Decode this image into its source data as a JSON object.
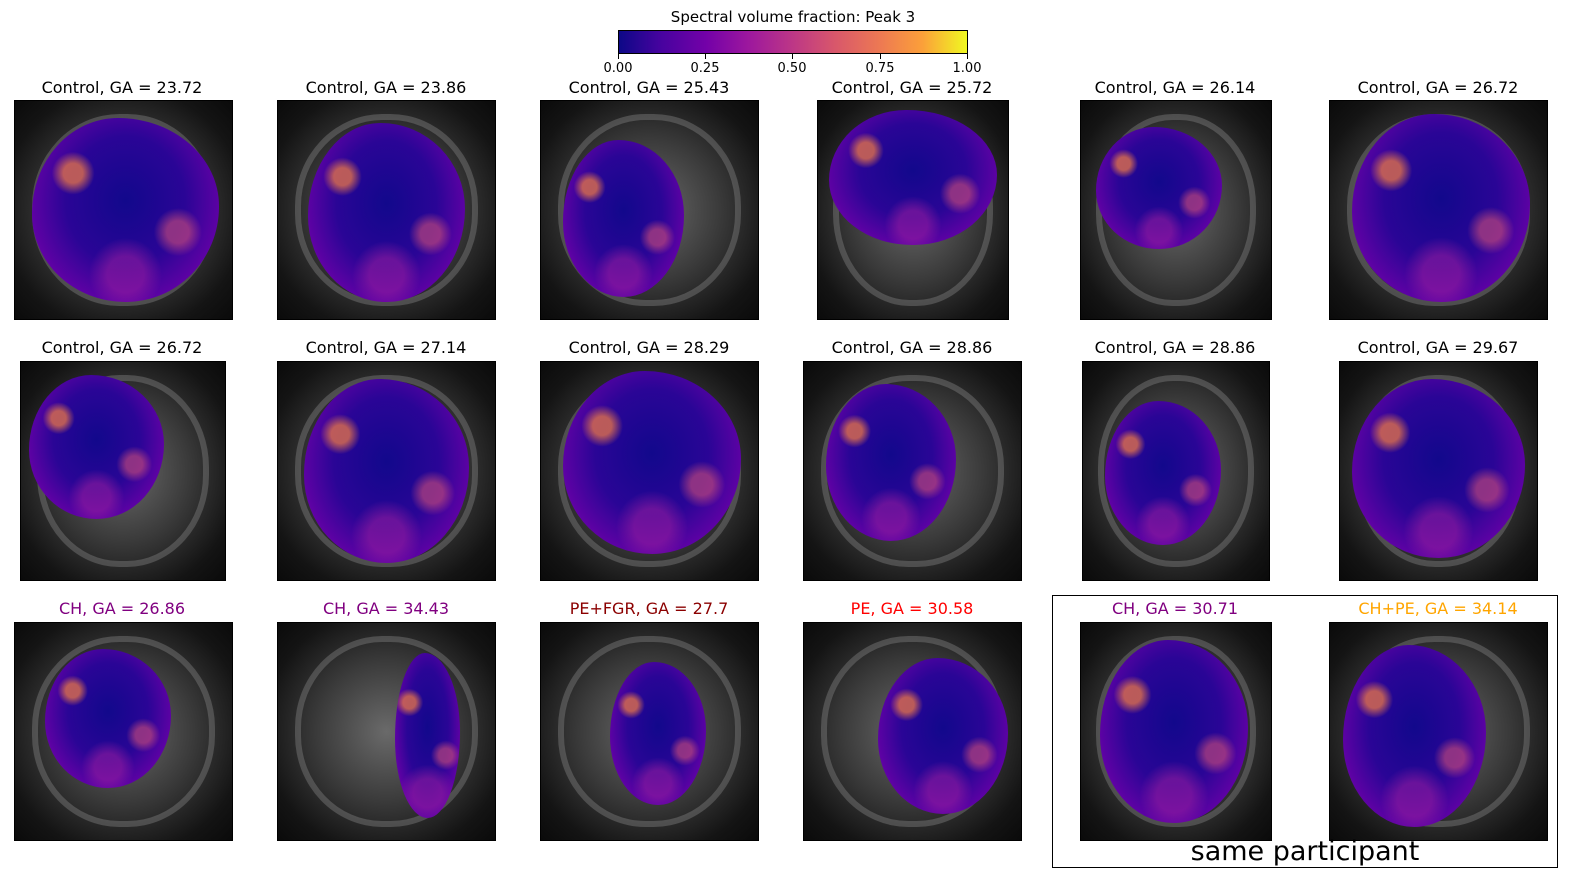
{
  "colorbar": {
    "title": "Spectral volume fraction: Peak 3",
    "ticks": [
      "0.00",
      "0.25",
      "0.50",
      "0.75",
      "1.00"
    ],
    "range": [
      0,
      1
    ],
    "colormap": "plasma"
  },
  "panels": [
    {
      "title": "Control, GA = 23.72",
      "group": "Control",
      "ga": 23.72,
      "color": "#000000"
    },
    {
      "title": "Control, GA = 23.86",
      "group": "Control",
      "ga": 23.86,
      "color": "#000000"
    },
    {
      "title": "Control, GA = 25.43",
      "group": "Control",
      "ga": 25.43,
      "color": "#000000"
    },
    {
      "title": "Control, GA = 25.72",
      "group": "Control",
      "ga": 25.72,
      "color": "#000000"
    },
    {
      "title": "Control, GA = 26.14",
      "group": "Control",
      "ga": 26.14,
      "color": "#000000"
    },
    {
      "title": "Control, GA = 26.72",
      "group": "Control",
      "ga": 26.72,
      "color": "#000000"
    },
    {
      "title": "Control, GA = 26.72",
      "group": "Control",
      "ga": 26.72,
      "color": "#000000"
    },
    {
      "title": "Control, GA = 27.14",
      "group": "Control",
      "ga": 27.14,
      "color": "#000000"
    },
    {
      "title": "Control, GA = 28.29",
      "group": "Control",
      "ga": 28.29,
      "color": "#000000"
    },
    {
      "title": "Control, GA = 28.86",
      "group": "Control",
      "ga": 28.86,
      "color": "#000000"
    },
    {
      "title": "Control, GA = 28.86",
      "group": "Control",
      "ga": 28.86,
      "color": "#000000"
    },
    {
      "title": "Control, GA = 29.67",
      "group": "Control",
      "ga": 29.67,
      "color": "#000000"
    },
    {
      "title": "CH, GA = 26.86",
      "group": "CH",
      "ga": 26.86,
      "color": "#800080"
    },
    {
      "title": "CH, GA = 34.43",
      "group": "CH",
      "ga": 34.43,
      "color": "#800080"
    },
    {
      "title": "PE+FGR, GA = 27.7",
      "group": "PE+FGR",
      "ga": 27.7,
      "color": "#8b0000"
    },
    {
      "title": "PE, GA = 30.58",
      "group": "PE",
      "ga": 30.58,
      "color": "#ff0000"
    },
    {
      "title": "CH, GA = 30.71",
      "group": "CH",
      "ga": 30.71,
      "color": "#800080"
    },
    {
      "title": "CH+PE, GA = 34.14",
      "group": "CH+PE",
      "ga": 34.14,
      "color": "#ffa500"
    }
  ],
  "group_label": "same participant"
}
